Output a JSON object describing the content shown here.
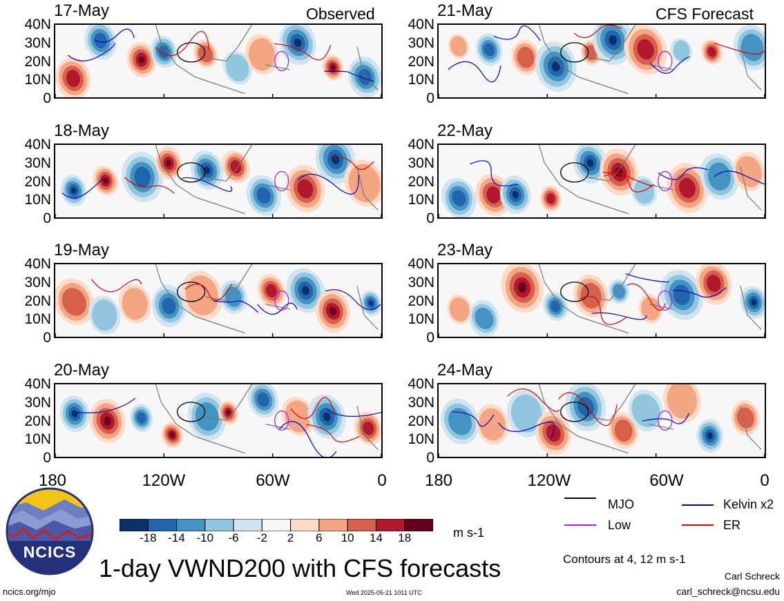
{
  "chart_data": {
    "type": "heatmap",
    "title": "1-day VWND200 with CFS forecasts",
    "column_titles": [
      "Observed",
      "CFS Forecast"
    ],
    "x_ticks": [
      "180",
      "120W",
      "60W",
      "0"
    ],
    "y_ticks": [
      "40N",
      "30N",
      "20N",
      "10N",
      "0"
    ],
    "xlim": [
      -180,
      0
    ],
    "ylim": [
      0,
      40
    ],
    "units": "m s-1",
    "colorbar_levels": [
      "-18",
      "-14",
      "-10",
      "-6",
      "-2",
      "2",
      "6",
      "10",
      "14",
      "18"
    ],
    "colorbar_colors": [
      "#08306b",
      "#2166ac",
      "#4393c3",
      "#92c5de",
      "#d1e5f0",
      "#f7f7f7",
      "#fddbc7",
      "#f4a582",
      "#d6604d",
      "#b2182b",
      "#67001f"
    ],
    "contour_note": "Contours at 4, 12 m s-1",
    "contour_legend": [
      {
        "name": "MJO",
        "color": "#000000"
      },
      {
        "name": "Kelvin x2",
        "color": "#0000cc"
      },
      {
        "name": "Low",
        "color": "#a020f0"
      },
      {
        "name": "ER",
        "color": "#dd0000"
      }
    ],
    "panels": [
      {
        "date": "17-May",
        "column": "Observed"
      },
      {
        "date": "18-May",
        "column": "Observed"
      },
      {
        "date": "19-May",
        "column": "Observed"
      },
      {
        "date": "20-May",
        "column": "Observed"
      },
      {
        "date": "21-May",
        "column": "CFS Forecast"
      },
      {
        "date": "22-May",
        "column": "CFS Forecast"
      },
      {
        "date": "23-May",
        "column": "CFS Forecast"
      },
      {
        "date": "24-May",
        "column": "CFS Forecast"
      }
    ]
  },
  "footer": {
    "logo_text": "NCICS",
    "url": "ncics.org/mjo",
    "timestamp": "Wed 2025-05-21 1011 UTC",
    "author": "Carl Schreck",
    "email": "carl_schreck@ncsu.edu"
  }
}
